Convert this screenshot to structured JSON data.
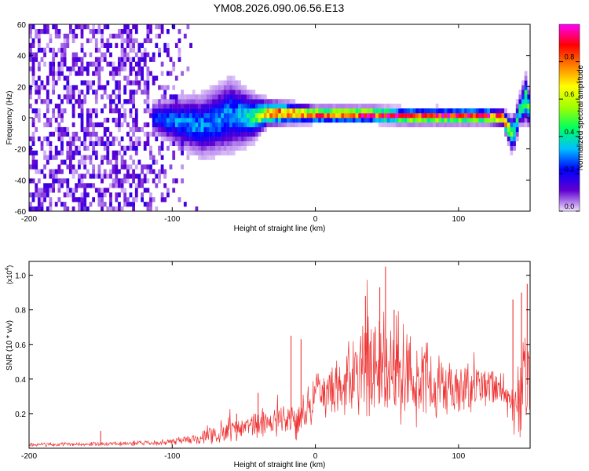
{
  "title": "YM08.2026.090.06.56.E13",
  "chart_data": [
    {
      "type": "heatmap",
      "xlabel": "Height of straight line (km)",
      "ylabel": "Frequency (Hz)",
      "xlim": [
        -200,
        150
      ],
      "ylim": [
        -60,
        60
      ],
      "x_ticks": [
        -200,
        -100,
        0,
        100
      ],
      "x_tick_labels": [
        "-200",
        "-100",
        "0",
        "100"
      ],
      "y_ticks": [
        -60,
        -40,
        -20,
        0,
        20,
        40,
        60
      ],
      "y_tick_labels": [
        "-60",
        "-40",
        "-20",
        "0",
        "20",
        "40",
        "60"
      ],
      "grid": false,
      "colorbar": {
        "label": "Normalized spectral amplitude",
        "range": [
          0,
          1
        ],
        "ticks": [
          0,
          0.2,
          0.4,
          0.6,
          0.8
        ],
        "tick_labels": [
          "0.0",
          "0.2",
          "0.4",
          "0.6",
          "0.8"
        ],
        "colormap": [
          "#f0e0ff",
          "#6000d0",
          "#0000ff",
          "#00c0ff",
          "#00ff60",
          "#a0ff00",
          "#ffff00",
          "#ff8000",
          "#ff0000",
          "#ff00ff"
        ]
      },
      "ridge": {
        "x": [
          -115,
          -100,
          -80,
          -60,
          -45,
          -35,
          -20,
          0,
          20,
          40,
          60,
          80,
          100,
          120,
          130,
          137,
          142,
          146,
          150
        ],
        "freq": [
          0,
          -2,
          -5,
          2,
          0,
          3,
          3,
          2,
          2,
          2,
          1,
          1,
          1,
          1,
          0,
          -12,
          5,
          12,
          2
        ],
        "amplitude": [
          0.25,
          0.3,
          0.3,
          0.3,
          0.4,
          0.75,
          0.85,
          0.9,
          0.88,
          0.9,
          0.88,
          0.9,
          0.88,
          0.9,
          0.85,
          0.45,
          0.4,
          0.5,
          0.4
        ],
        "spread": [
          6,
          9,
          12,
          14,
          9,
          5,
          4,
          3,
          3,
          3,
          3,
          3,
          3,
          3,
          3,
          7,
          6,
          9,
          5
        ]
      },
      "noise_region": [
        -200,
        -80
      ]
    },
    {
      "type": "line",
      "xlabel": "Height of straight line (km)",
      "ylabel": "SNR (10 * v/v)",
      "y_multiplier": "(x10",
      "y_multiplier_exp": "4",
      "y_multiplier_close": ")",
      "xlim": [
        -200,
        150
      ],
      "ylim": [
        0,
        1.08
      ],
      "x_ticks": [
        -200,
        -100,
        0,
        100
      ],
      "x_tick_labels": [
        "-200",
        "-100",
        "0",
        "100"
      ],
      "y_ticks": [
        0.2,
        0.4,
        0.6,
        0.8,
        1.0
      ],
      "y_tick_labels": [
        "0.2",
        "0.4",
        "0.6",
        "0.8",
        "1.0"
      ],
      "grid": false,
      "series": [
        {
          "color": "#ee3333",
          "envelope_x": [
            -200,
            -150,
            -110,
            -100,
            -80,
            -60,
            -40,
            -20,
            -10,
            0,
            10,
            20,
            30,
            40,
            50,
            60,
            70,
            80,
            90,
            100,
            110,
            120,
            130,
            135,
            140,
            145,
            150
          ],
          "envelope_mean": [
            0.02,
            0.025,
            0.03,
            0.04,
            0.06,
            0.1,
            0.14,
            0.18,
            0.15,
            0.3,
            0.34,
            0.38,
            0.42,
            0.45,
            0.47,
            0.43,
            0.4,
            0.38,
            0.38,
            0.37,
            0.36,
            0.36,
            0.35,
            0.3,
            0.2,
            0.35,
            0.38
          ],
          "envelope_amp": [
            0.01,
            0.012,
            0.015,
            0.02,
            0.04,
            0.06,
            0.08,
            0.1,
            0.1,
            0.12,
            0.18,
            0.22,
            0.26,
            0.3,
            0.32,
            0.28,
            0.24,
            0.2,
            0.18,
            0.16,
            0.14,
            0.12,
            0.1,
            0.12,
            0.18,
            0.28,
            0.2
          ],
          "spikes": [
            {
              "x": -150,
              "y": 0.1
            },
            {
              "x": -55,
              "y": 0.2
            },
            {
              "x": -40,
              "y": 0.32
            },
            {
              "x": -17,
              "y": 0.65
            },
            {
              "x": -10,
              "y": 0.63
            },
            {
              "x": 35,
              "y": 0.88
            },
            {
              "x": 45,
              "y": 0.93
            },
            {
              "x": 49,
              "y": 1.05
            },
            {
              "x": 55,
              "y": 0.8
            },
            {
              "x": 138,
              "y": 0.86
            },
            {
              "x": 144,
              "y": 0.9
            },
            {
              "x": 148,
              "y": 0.95
            }
          ]
        }
      ]
    }
  ]
}
